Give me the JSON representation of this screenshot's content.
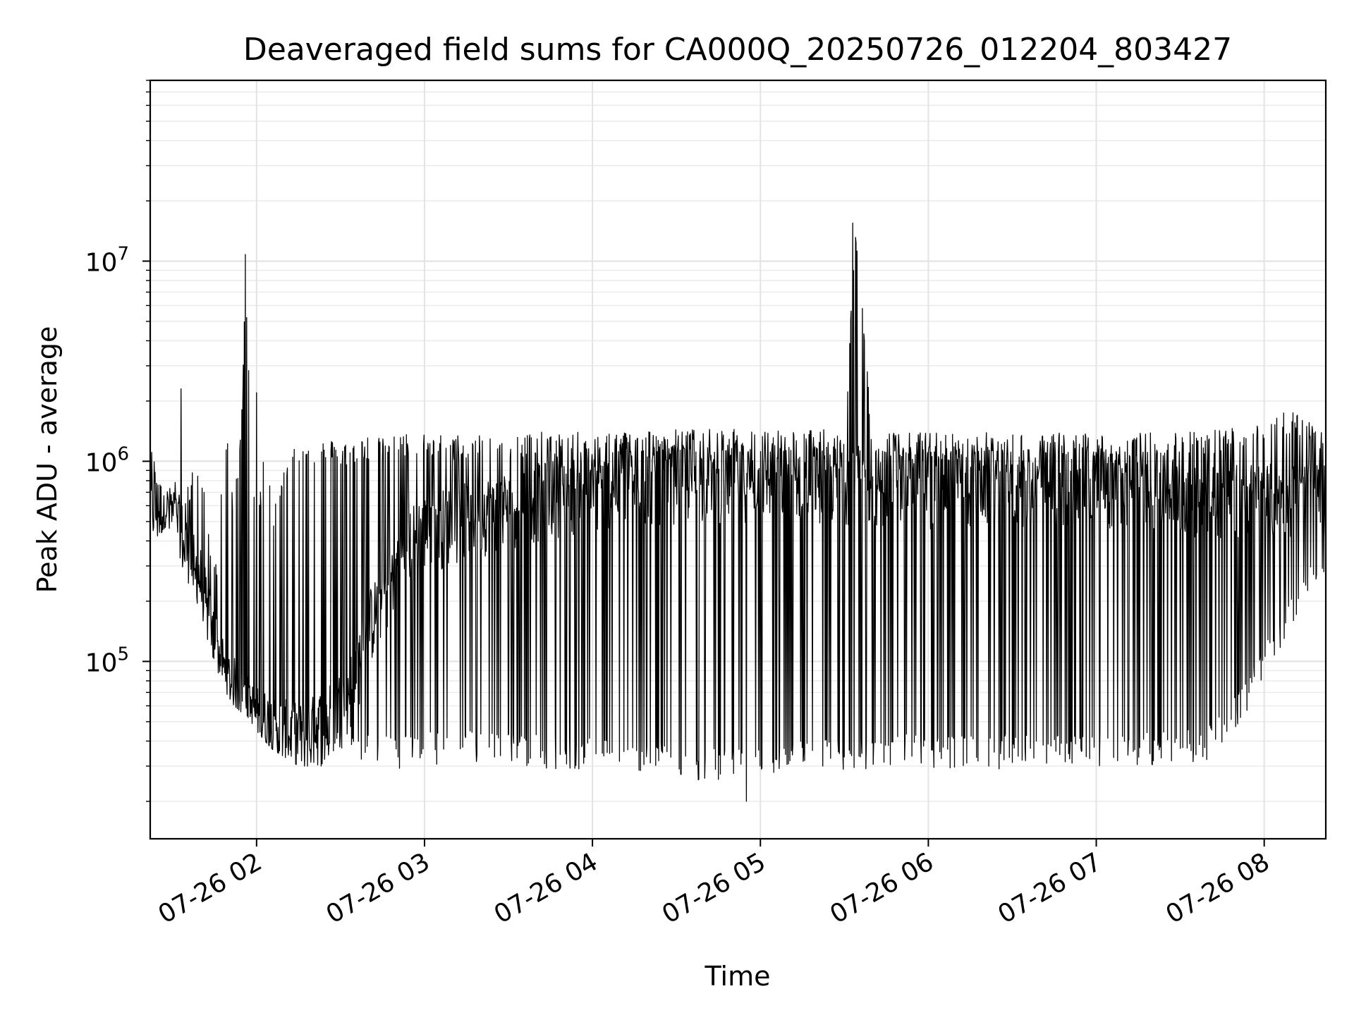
{
  "chart_data": {
    "type": "line",
    "title": "Deaveraged field sums for CA000Q_20250726_012204_803427",
    "xlabel": "Time",
    "ylabel": "Peak ADU - average",
    "yscale": "log",
    "ylim": [
      13000,
      80000000
    ],
    "xlim": [
      "2025-07-26 01:22",
      "2025-07-26 08:22"
    ],
    "x_ticks": [
      {
        "t": "2025-07-26 02:00",
        "label": "07-26 02"
      },
      {
        "t": "2025-07-26 03:00",
        "label": "07-26 03"
      },
      {
        "t": "2025-07-26 04:00",
        "label": "07-26 04"
      },
      {
        "t": "2025-07-26 05:00",
        "label": "07-26 05"
      },
      {
        "t": "2025-07-26 06:00",
        "label": "07-26 06"
      },
      {
        "t": "2025-07-26 07:00",
        "label": "07-26 07"
      },
      {
        "t": "2025-07-26 08:00",
        "label": "07-26 08"
      }
    ],
    "y_ticks": [
      {
        "value": 100000,
        "base": "10",
        "exp": "5"
      },
      {
        "value": 1000000,
        "base": "10",
        "exp": "6"
      },
      {
        "value": 10000000,
        "base": "10",
        "exp": "7"
      }
    ],
    "grid": true,
    "line_color": "#000000",
    "series": [
      {
        "x": [
          "2025-07-26 01:22",
          "2025-07-26 01:25",
          "2025-07-26 01:28",
          "2025-07-26 01:31",
          "2025-07-26 01:34",
          "2025-07-26 01:37",
          "2025-07-26 01:40",
          "2025-07-26 01:43",
          "2025-07-26 01:46",
          "2025-07-26 01:49",
          "2025-07-26 01:52",
          "2025-07-26 01:55",
          "2025-07-26 01:56",
          "2025-07-26 01:58",
          "2025-07-26 02:00",
          "2025-07-26 02:03",
          "2025-07-26 02:06",
          "2025-07-26 02:09",
          "2025-07-26 02:12",
          "2025-07-26 02:15",
          "2025-07-26 02:20",
          "2025-07-26 02:25",
          "2025-07-26 02:30",
          "2025-07-26 02:35",
          "2025-07-26 02:40",
          "2025-07-26 02:45",
          "2025-07-26 02:50",
          "2025-07-26 02:55",
          "2025-07-26 03:00",
          "2025-07-26 03:10",
          "2025-07-26 03:20",
          "2025-07-26 03:30",
          "2025-07-26 03:40",
          "2025-07-26 03:50",
          "2025-07-26 04:00",
          "2025-07-26 04:10",
          "2025-07-26 04:20",
          "2025-07-26 04:30",
          "2025-07-26 04:40",
          "2025-07-26 04:50",
          "2025-07-26 05:00",
          "2025-07-26 05:10",
          "2025-07-26 05:20",
          "2025-07-26 05:30",
          "2025-07-26 05:34",
          "2025-07-26 05:40",
          "2025-07-26 05:50",
          "2025-07-26 06:00",
          "2025-07-26 06:10",
          "2025-07-26 06:20",
          "2025-07-26 06:30",
          "2025-07-26 06:40",
          "2025-07-26 06:50",
          "2025-07-26 07:00",
          "2025-07-26 07:10",
          "2025-07-26 07:20",
          "2025-07-26 07:30",
          "2025-07-26 07:40",
          "2025-07-26 07:50",
          "2025-07-26 08:00",
          "2025-07-26 08:10",
          "2025-07-26 08:20"
        ],
        "low": [
          450000,
          420000,
          480000,
          400000,
          280000,
          220000,
          180000,
          120000,
          90000,
          70000,
          60000,
          55000,
          55000,
          50000,
          45000,
          40000,
          36000,
          34000,
          32000,
          30000,
          30000,
          30000,
          30000,
          30000,
          30000,
          29000,
          29000,
          30000,
          30000,
          30000,
          30000,
          30000,
          29000,
          29000,
          28000,
          28000,
          27000,
          26000,
          25000,
          24000,
          26000,
          27000,
          27000,
          28000,
          28000,
          28000,
          29000,
          29000,
          29000,
          29000,
          29000,
          29000,
          29000,
          30000,
          30000,
          30000,
          30000,
          32000,
          45000,
          80000,
          150000,
          280000
        ],
        "high": [
          1200000,
          900000,
          700000,
          800000,
          650000,
          900000,
          1000000,
          450000,
          350000,
          1500000,
          600000,
          2200000,
          10800000,
          1600000,
          400000,
          1500000,
          600000,
          800000,
          1300000,
          1200000,
          1250000,
          1300000,
          1250000,
          1300000,
          1350000,
          1300000,
          1350000,
          1400000,
          1400000,
          1350000,
          1400000,
          1400000,
          1400000,
          1400000,
          1400000,
          1420000,
          1450000,
          1450000,
          1450000,
          1450000,
          1450000,
          1450000,
          1450000,
          1420000,
          15500000,
          1400000,
          1400000,
          1400000,
          1380000,
          1400000,
          1380000,
          1380000,
          1400000,
          1380000,
          1380000,
          1400000,
          1420000,
          1450000,
          1500000,
          1700000,
          1850000,
          1400000
        ],
        "typical": [
          600000,
          550000,
          550000,
          500000,
          400000,
          300000,
          250000,
          160000,
          110000,
          80000,
          70000,
          65000,
          60000,
          55000,
          50000,
          48000,
          46000,
          44000,
          42000,
          42000,
          45000,
          50000,
          60000,
          80000,
          150000,
          200000,
          300000,
          400000,
          450000,
          500000,
          550000,
          600000,
          650000,
          700000,
          700000,
          750000,
          780000,
          800000,
          800000,
          820000,
          820000,
          800000,
          800000,
          800000,
          800000,
          780000,
          780000,
          760000,
          760000,
          760000,
          760000,
          750000,
          750000,
          750000,
          740000,
          720000,
          700000,
          680000,
          660000,
          650000,
          650000,
          650000
        ]
      }
    ],
    "spikes": [
      {
        "t": "2025-07-26 01:33",
        "value": 2300000
      },
      {
        "t": "2025-07-26 01:56",
        "value": 10800000
      },
      {
        "t": "2025-07-26 02:00",
        "value": 2200000
      },
      {
        "t": "2025-07-26 05:33",
        "value": 15500000
      },
      {
        "t": "2025-07-26 04:55",
        "value": 20000
      }
    ]
  }
}
